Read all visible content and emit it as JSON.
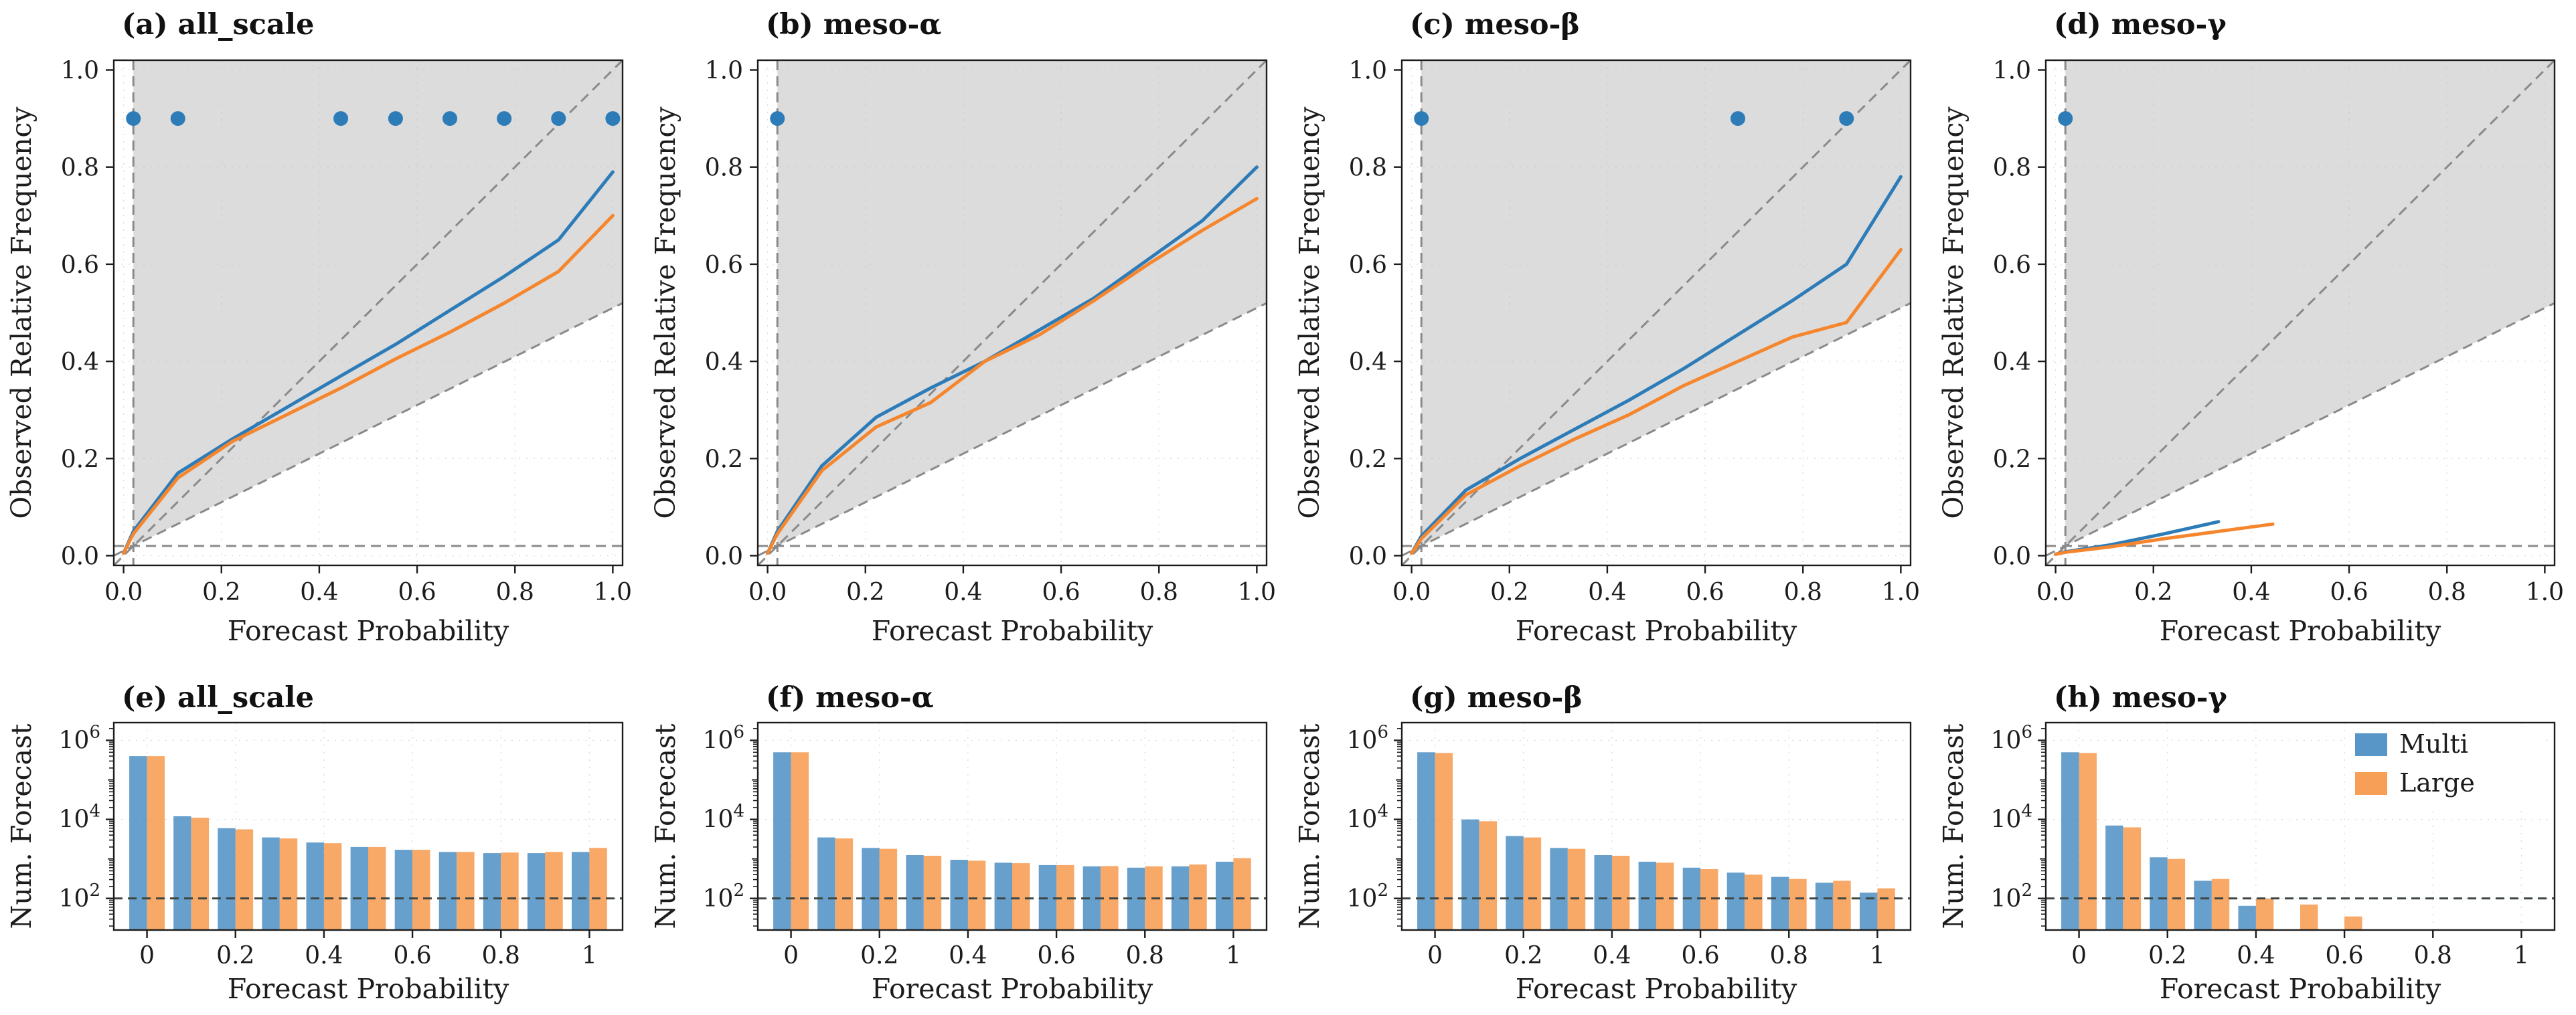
{
  "figure": {
    "colors": {
      "multi": "#2d7cb8",
      "large": "#f5862d",
      "shade": "#dcdcdc",
      "dash": "#8a8a8a",
      "grid": "#b9b9b9",
      "ref": "#3d4642",
      "spine": "#1c1c1c"
    },
    "legend": {
      "items": [
        {
          "label": "Multi",
          "color": "multi"
        },
        {
          "label": "Large",
          "color": "large"
        }
      ]
    }
  },
  "chart_data": [
    {
      "id": "a",
      "type": "line",
      "title": "(a) all_scale",
      "xlabel": "Forecast Probability",
      "ylabel": "Observed Relative Frequency",
      "xlim": [
        0,
        1
      ],
      "ylim": [
        0,
        1
      ],
      "xticks": [
        0,
        0.2,
        0.4,
        0.6,
        0.8,
        1
      ],
      "xtick_labels": [
        "0.0",
        "0.2",
        "0.4",
        "0.6",
        "0.8",
        "1.0"
      ],
      "yticks": [
        0,
        0.2,
        0.4,
        0.6,
        0.8,
        1
      ],
      "ytick_labels": [
        "0.0",
        "0.2",
        "0.4",
        "0.6",
        "0.8",
        "1.0"
      ],
      "climatology": 0.02,
      "significance_dots": {
        "y": 0.9,
        "x": [
          0.02,
          0.111,
          0.444,
          0.556,
          0.667,
          0.778,
          0.889,
          1.0
        ]
      },
      "series": [
        {
          "name": "Multi",
          "x": [
            0,
            0.02,
            0.111,
            0.222,
            0.333,
            0.444,
            0.556,
            0.667,
            0.778,
            0.889,
            1.0
          ],
          "y": [
            0.005,
            0.05,
            0.17,
            0.24,
            0.305,
            0.37,
            0.435,
            0.505,
            0.575,
            0.65,
            0.79
          ]
        },
        {
          "name": "Large",
          "x": [
            0,
            0.02,
            0.111,
            0.222,
            0.333,
            0.444,
            0.556,
            0.667,
            0.778,
            0.889,
            1.0
          ],
          "y": [
            0.005,
            0.045,
            0.16,
            0.235,
            0.29,
            0.345,
            0.405,
            0.46,
            0.52,
            0.585,
            0.7
          ]
        }
      ]
    },
    {
      "id": "b",
      "type": "line",
      "title": "(b) meso-α",
      "xlabel": "Forecast Probability",
      "ylabel": "Observed Relative Frequency",
      "xlim": [
        0,
        1
      ],
      "ylim": [
        0,
        1
      ],
      "xticks": [
        0,
        0.2,
        0.4,
        0.6,
        0.8,
        1
      ],
      "xtick_labels": [
        "0.0",
        "0.2",
        "0.4",
        "0.6",
        "0.8",
        "1.0"
      ],
      "yticks": [
        0,
        0.2,
        0.4,
        0.6,
        0.8,
        1
      ],
      "ytick_labels": [
        "0.0",
        "0.2",
        "0.4",
        "0.6",
        "0.8",
        "1.0"
      ],
      "climatology": 0.02,
      "significance_dots": {
        "y": 0.9,
        "x": [
          0.02
        ]
      },
      "series": [
        {
          "name": "Multi",
          "x": [
            0,
            0.02,
            0.111,
            0.222,
            0.333,
            0.444,
            0.556,
            0.667,
            0.778,
            0.889,
            1.0
          ],
          "y": [
            0.005,
            0.05,
            0.185,
            0.285,
            0.345,
            0.4,
            0.465,
            0.53,
            0.61,
            0.69,
            0.8
          ]
        },
        {
          "name": "Large",
          "x": [
            0,
            0.02,
            0.111,
            0.222,
            0.333,
            0.444,
            0.556,
            0.667,
            0.778,
            0.889,
            1.0
          ],
          "y": [
            0.005,
            0.045,
            0.175,
            0.265,
            0.315,
            0.4,
            0.455,
            0.525,
            0.6,
            0.67,
            0.735
          ]
        }
      ]
    },
    {
      "id": "c",
      "type": "line",
      "title": "(c) meso-β",
      "xlabel": "Forecast Probability",
      "ylabel": "Observed Relative Frequency",
      "xlim": [
        0,
        1
      ],
      "ylim": [
        0,
        1
      ],
      "xticks": [
        0,
        0.2,
        0.4,
        0.6,
        0.8,
        1
      ],
      "xtick_labels": [
        "0.0",
        "0.2",
        "0.4",
        "0.6",
        "0.8",
        "1.0"
      ],
      "yticks": [
        0,
        0.2,
        0.4,
        0.6,
        0.8,
        1
      ],
      "ytick_labels": [
        "0.0",
        "0.2",
        "0.4",
        "0.6",
        "0.8",
        "1.0"
      ],
      "climatology": 0.02,
      "significance_dots": {
        "y": 0.9,
        "x": [
          0.02,
          0.667,
          0.889
        ]
      },
      "series": [
        {
          "name": "Multi",
          "x": [
            0,
            0.02,
            0.111,
            0.222,
            0.333,
            0.444,
            0.556,
            0.667,
            0.778,
            0.889,
            1.0
          ],
          "y": [
            0.005,
            0.04,
            0.135,
            0.2,
            0.26,
            0.32,
            0.385,
            0.455,
            0.525,
            0.6,
            0.78
          ]
        },
        {
          "name": "Large",
          "x": [
            0,
            0.02,
            0.111,
            0.222,
            0.333,
            0.444,
            0.556,
            0.667,
            0.778,
            0.889,
            1.0
          ],
          "y": [
            0.005,
            0.035,
            0.125,
            0.185,
            0.24,
            0.29,
            0.35,
            0.4,
            0.45,
            0.48,
            0.63
          ]
        }
      ]
    },
    {
      "id": "d",
      "type": "line",
      "title": "(d) meso-γ",
      "xlabel": "Forecast Probability",
      "ylabel": "Observed Relative Frequency",
      "xlim": [
        0,
        1
      ],
      "ylim": [
        0,
        1
      ],
      "xticks": [
        0,
        0.2,
        0.4,
        0.6,
        0.8,
        1
      ],
      "xtick_labels": [
        "0.0",
        "0.2",
        "0.4",
        "0.6",
        "0.8",
        "1.0"
      ],
      "yticks": [
        0,
        0.2,
        0.4,
        0.6,
        0.8,
        1
      ],
      "ytick_labels": [
        "0.0",
        "0.2",
        "0.4",
        "0.6",
        "0.8",
        "1.0"
      ],
      "climatology": 0.02,
      "significance_dots": {
        "y": 0.9,
        "x": [
          0.02
        ]
      },
      "series": [
        {
          "name": "Multi",
          "x": [
            0,
            0.02,
            0.111,
            0.222,
            0.333
          ],
          "y": [
            0.003,
            0.008,
            0.022,
            0.045,
            0.07
          ]
        },
        {
          "name": "Large",
          "x": [
            0,
            0.02,
            0.111,
            0.222,
            0.333,
            0.444
          ],
          "y": [
            0.003,
            0.007,
            0.018,
            0.035,
            0.05,
            0.065
          ]
        }
      ]
    },
    {
      "id": "e",
      "type": "bar",
      "title": "(e) all_scale",
      "xlabel": "Forecast Probability",
      "ylabel": "Num. Forecast",
      "yaxis_scale": "log",
      "xlim": [
        -0.075,
        1.075
      ],
      "xticks": [
        0,
        0.2,
        0.4,
        0.6,
        0.8,
        1
      ],
      "xtick_labels": [
        "0",
        "0.2",
        "0.4",
        "0.6",
        "0.8",
        "1"
      ],
      "ytick_exp": [
        2,
        4,
        6
      ],
      "ylim_exp": [
        1.2,
        6.45
      ],
      "ref_value": 100,
      "bins": [
        0,
        0.1,
        0.2,
        0.3,
        0.4,
        0.5,
        0.6,
        0.7,
        0.8,
        0.9,
        1.0
      ],
      "series": [
        {
          "name": "Multi",
          "values": [
            400000,
            12000,
            6000,
            3500,
            2600,
            2000,
            1700,
            1500,
            1400,
            1400,
            1500
          ]
        },
        {
          "name": "Large",
          "values": [
            400000,
            11000,
            5600,
            3300,
            2500,
            2000,
            1700,
            1500,
            1450,
            1500,
            1900
          ]
        }
      ],
      "show_legend": false
    },
    {
      "id": "f",
      "type": "bar",
      "title": "(f) meso-α",
      "xlabel": "Forecast Probability",
      "ylabel": "Num. Forecast",
      "yaxis_scale": "log",
      "xlim": [
        -0.075,
        1.075
      ],
      "xticks": [
        0,
        0.2,
        0.4,
        0.6,
        0.8,
        1
      ],
      "xtick_labels": [
        "0",
        "0.2",
        "0.4",
        "0.6",
        "0.8",
        "1"
      ],
      "ytick_exp": [
        2,
        4,
        6
      ],
      "ylim_exp": [
        1.2,
        6.45
      ],
      "ref_value": 100,
      "bins": [
        0,
        0.1,
        0.2,
        0.3,
        0.4,
        0.5,
        0.6,
        0.7,
        0.8,
        0.9,
        1.0
      ],
      "series": [
        {
          "name": "Multi",
          "values": [
            500000,
            3500,
            1900,
            1250,
            950,
            800,
            700,
            650,
            600,
            650,
            850
          ]
        },
        {
          "name": "Large",
          "values": [
            500000,
            3300,
            1800,
            1200,
            900,
            780,
            700,
            660,
            650,
            720,
            1050
          ]
        }
      ],
      "show_legend": false
    },
    {
      "id": "g",
      "type": "bar",
      "title": "(g) meso-β",
      "xlabel": "Forecast Probability",
      "ylabel": "Num. Forecast",
      "yaxis_scale": "log",
      "xlim": [
        -0.075,
        1.075
      ],
      "xticks": [
        0,
        0.2,
        0.4,
        0.6,
        0.8,
        1
      ],
      "xtick_labels": [
        "0",
        "0.2",
        "0.4",
        "0.6",
        "0.8",
        "1"
      ],
      "ytick_exp": [
        2,
        4,
        6
      ],
      "ylim_exp": [
        1.2,
        6.45
      ],
      "ref_value": 100,
      "bins": [
        0,
        0.1,
        0.2,
        0.3,
        0.4,
        0.5,
        0.6,
        0.7,
        0.8,
        0.9,
        1.0
      ],
      "series": [
        {
          "name": "Multi",
          "values": [
            500000,
            10000,
            3800,
            1900,
            1250,
            850,
            600,
            450,
            350,
            250,
            140
          ]
        },
        {
          "name": "Large",
          "values": [
            480000,
            9000,
            3500,
            1800,
            1200,
            800,
            550,
            400,
            310,
            280,
            180
          ]
        }
      ],
      "show_legend": false
    },
    {
      "id": "h",
      "type": "bar",
      "title": "(h) meso-γ",
      "xlabel": "Forecast Probability",
      "ylabel": "Num. Forecast",
      "yaxis_scale": "log",
      "xlim": [
        -0.075,
        1.075
      ],
      "xticks": [
        0,
        0.2,
        0.4,
        0.6,
        0.8,
        1
      ],
      "xtick_labels": [
        "0",
        "0.2",
        "0.4",
        "0.6",
        "0.8",
        "1"
      ],
      "ytick_exp": [
        2,
        4,
        6
      ],
      "ylim_exp": [
        1.2,
        6.45
      ],
      "ref_value": 100,
      "bins": [
        0,
        0.1,
        0.2,
        0.3,
        0.4,
        0.5,
        0.6,
        0.7,
        0.8,
        0.9,
        1.0
      ],
      "series": [
        {
          "name": "Multi",
          "values": [
            500000,
            7000,
            1100,
            280,
            65,
            null,
            null,
            null,
            null,
            null,
            null
          ]
        },
        {
          "name": "Large",
          "values": [
            480000,
            6300,
            1000,
            310,
            100,
            70,
            35,
            null,
            null,
            null,
            null
          ]
        }
      ],
      "show_legend": true
    }
  ]
}
